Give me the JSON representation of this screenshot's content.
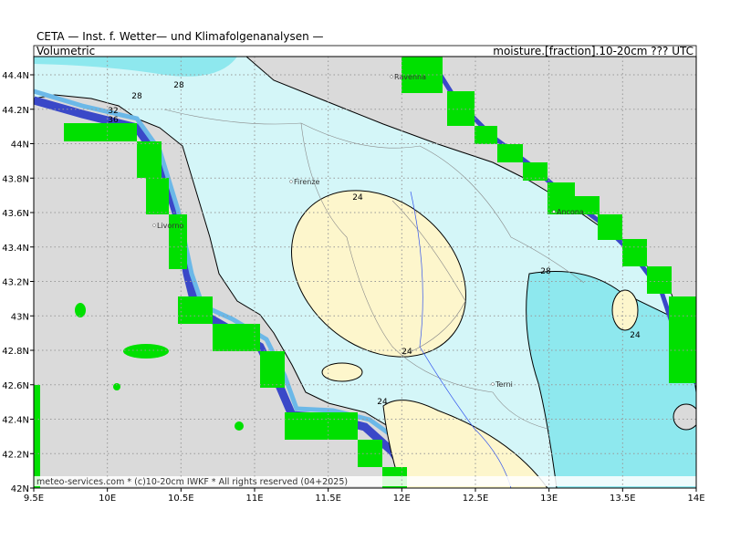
{
  "header": {
    "title": "CETA — Inst. f. Wetter— und Klimafolgenanalysen —",
    "left_label": "Volumetric",
    "right_label": "moisture.[fraction].10-20cm ??? UTC"
  },
  "map": {
    "x_axis_labels": [
      "9.5E",
      "10E",
      "10.5E",
      "11E",
      "11.5E",
      "12E",
      "12.5E",
      "13E",
      "13.5E",
      "14E"
    ],
    "y_axis_labels": [
      "44.4N",
      "44.2N",
      "44N",
      "43.8N",
      "43.6N",
      "43.4N",
      "43.2N",
      "43N",
      "42.8N",
      "42.6N",
      "42.4N",
      "42.2N",
      "42N"
    ],
    "contour_labels": [
      "28",
      "28",
      "32",
      "36",
      "24",
      "24",
      "24",
      "28",
      "24"
    ],
    "places": [
      "Ravenna",
      "Firenze",
      "Livorno",
      "Ancona",
      "Terni"
    ]
  },
  "footer": {
    "credit": "meteo-services.com * (c)10-20cm IWKF * All rights reserved (04+2025)"
  }
}
